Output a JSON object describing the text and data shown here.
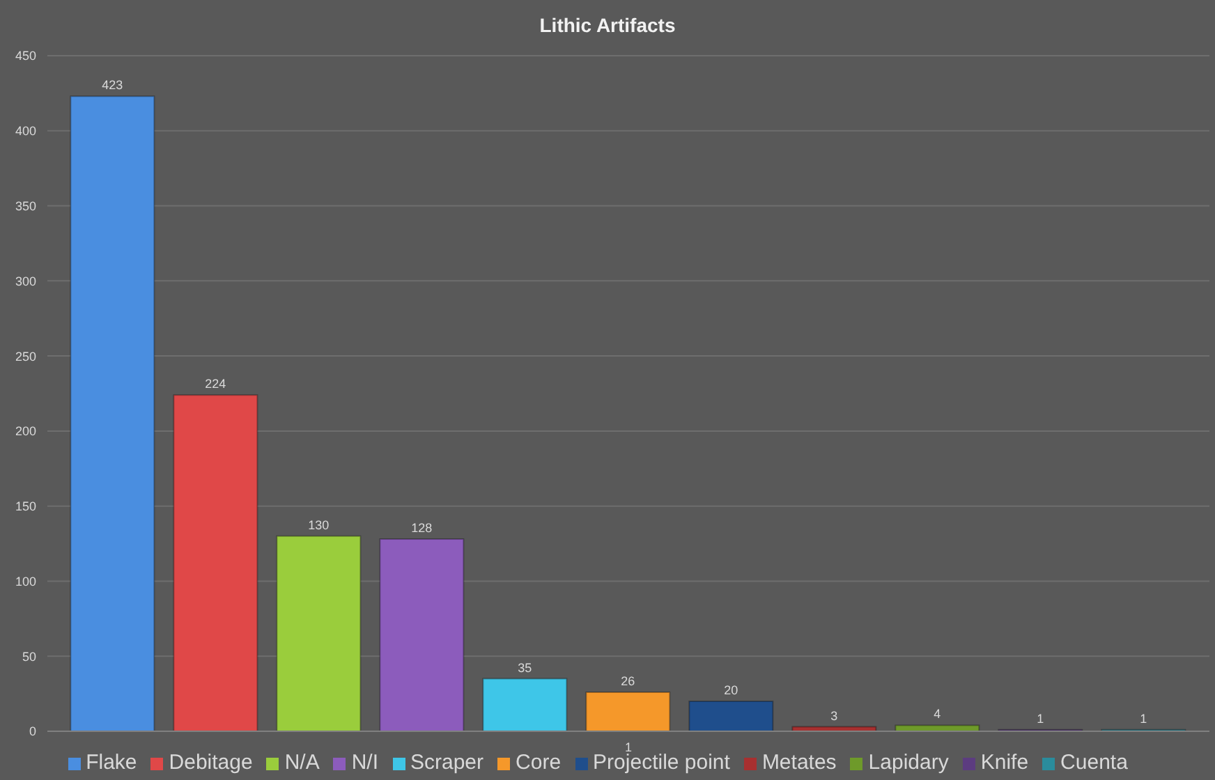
{
  "chart_data": {
    "type": "bar",
    "title": "Lithic Artifacts",
    "categories": [
      "1"
    ],
    "series": [
      {
        "name": "Flake",
        "color": "#4a8ee0",
        "values": [
          423
        ]
      },
      {
        "name": "Debitage",
        "color": "#e04848",
        "values": [
          224
        ]
      },
      {
        "name": "N/A",
        "color": "#9acd3c",
        "values": [
          130
        ]
      },
      {
        "name": "N/I",
        "color": "#8c5cbc",
        "values": [
          128
        ]
      },
      {
        "name": "Scraper",
        "color": "#3ec6e8",
        "values": [
          35
        ]
      },
      {
        "name": "Core",
        "color": "#f5982a",
        "values": [
          26
        ]
      },
      {
        "name": "Projectile point",
        "color": "#1f4e8c",
        "values": [
          20
        ]
      },
      {
        "name": "Metates",
        "color": "#a83030",
        "values": [
          3
        ]
      },
      {
        "name": "Lapidary",
        "color": "#6e9a2a",
        "values": [
          4
        ]
      },
      {
        "name": "Knife",
        "color": "#5c3c80",
        "values": [
          1
        ]
      },
      {
        "name": "Cuenta",
        "color": "#2a8c9c",
        "values": [
          1
        ]
      }
    ],
    "ylim": [
      0,
      450
    ],
    "yticks": [
      0,
      50,
      100,
      150,
      200,
      250,
      300,
      350,
      400,
      450
    ],
    "grid": "y",
    "legend": "bottom",
    "data_labels": true
  }
}
